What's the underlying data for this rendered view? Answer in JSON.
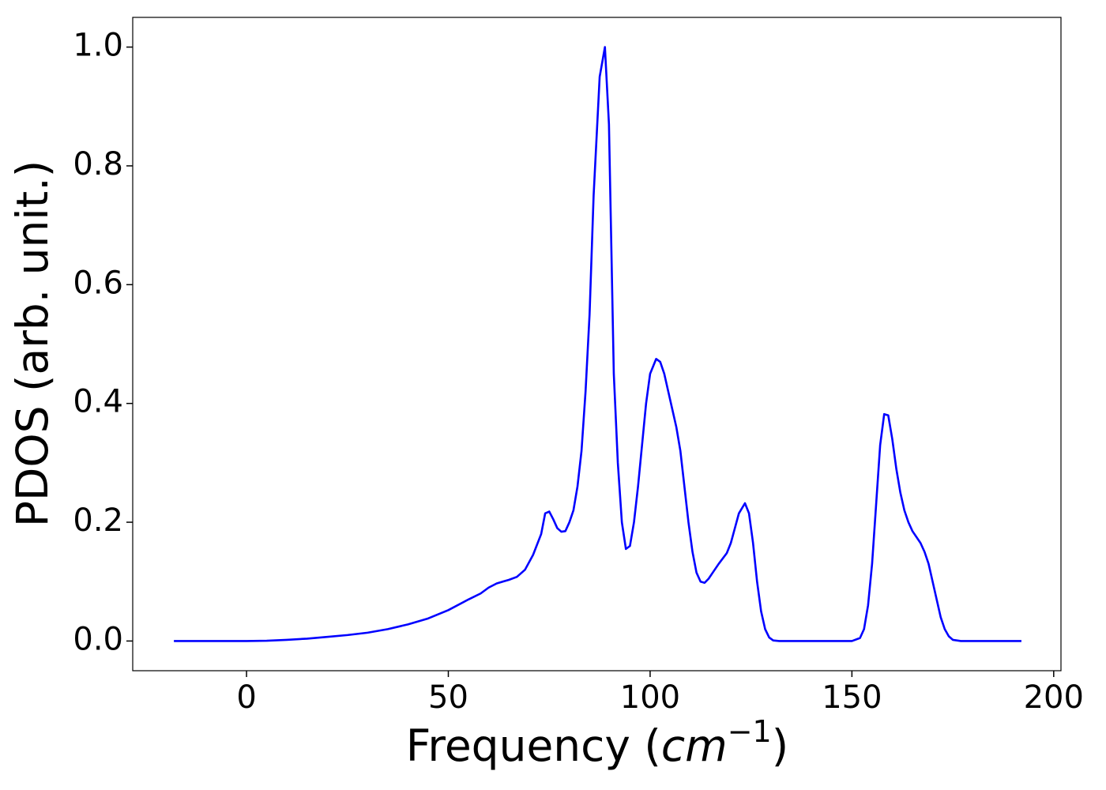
{
  "chart_data": {
    "type": "line",
    "ylabel": "PDOS (arb. unit.)",
    "xlabel_parts": [
      "Frequency (",
      "cm",
      "−1",
      ")"
    ],
    "xlim": [
      -28.2,
      201.8
    ],
    "ylim": [
      -0.05,
      1.05
    ],
    "xticks": [
      0,
      50,
      100,
      150,
      200
    ],
    "yticks": [
      {
        "value": 0,
        "label": "0.0"
      },
      0.2,
      0.4,
      0.6,
      0.8,
      {
        "value": 1,
        "label": "1.0"
      }
    ],
    "series": [
      {
        "name": "PDOS",
        "color": "#0000ff",
        "x": [
          -18,
          0,
          5,
          10,
          15,
          20,
          25,
          30,
          35,
          40,
          45,
          50,
          55,
          58,
          60,
          62,
          65,
          67,
          69,
          71,
          73,
          74,
          75,
          76,
          77,
          78,
          79,
          80,
          81,
          82,
          83,
          84,
          85,
          86,
          87.5,
          88.8,
          89.8,
          91,
          92,
          93,
          94,
          95,
          96,
          97,
          98,
          99,
          100,
          101.5,
          102.5,
          103.5,
          104.5,
          105.5,
          106.5,
          107.5,
          108.5,
          109.5,
          110.5,
          111.5,
          112.5,
          113.5,
          114.5,
          115.5,
          117,
          119,
          120,
          121,
          122,
          123.5,
          124.5,
          125.5,
          126.5,
          127.5,
          128.5,
          129.5,
          130.5,
          132,
          140,
          150,
          152,
          153,
          154,
          155,
          156,
          157,
          158,
          159,
          160,
          161,
          162,
          163,
          164,
          165,
          167,
          168,
          169,
          170,
          171,
          172,
          173,
          174,
          175,
          177,
          192
        ],
        "values": [
          0,
          0,
          0.0005,
          0.002,
          0.004,
          0.007,
          0.01,
          0.014,
          0.02,
          0.028,
          0.038,
          0.052,
          0.07,
          0.08,
          0.09,
          0.097,
          0.103,
          0.108,
          0.12,
          0.145,
          0.18,
          0.215,
          0.218,
          0.205,
          0.19,
          0.184,
          0.185,
          0.2,
          0.22,
          0.26,
          0.32,
          0.42,
          0.55,
          0.75,
          0.95,
          1.0,
          0.87,
          0.45,
          0.3,
          0.2,
          0.155,
          0.16,
          0.2,
          0.26,
          0.33,
          0.4,
          0.45,
          0.475,
          0.47,
          0.45,
          0.42,
          0.39,
          0.36,
          0.32,
          0.26,
          0.2,
          0.15,
          0.115,
          0.1,
          0.098,
          0.105,
          0.115,
          0.13,
          0.148,
          0.165,
          0.19,
          0.215,
          0.232,
          0.215,
          0.165,
          0.1,
          0.05,
          0.02,
          0.006,
          0.001,
          0,
          0,
          0,
          0.005,
          0.02,
          0.06,
          0.13,
          0.23,
          0.33,
          0.382,
          0.38,
          0.34,
          0.29,
          0.25,
          0.22,
          0.2,
          0.185,
          0.165,
          0.15,
          0.13,
          0.1,
          0.07,
          0.04,
          0.02,
          0.008,
          0.002,
          0,
          0
        ]
      }
    ]
  }
}
